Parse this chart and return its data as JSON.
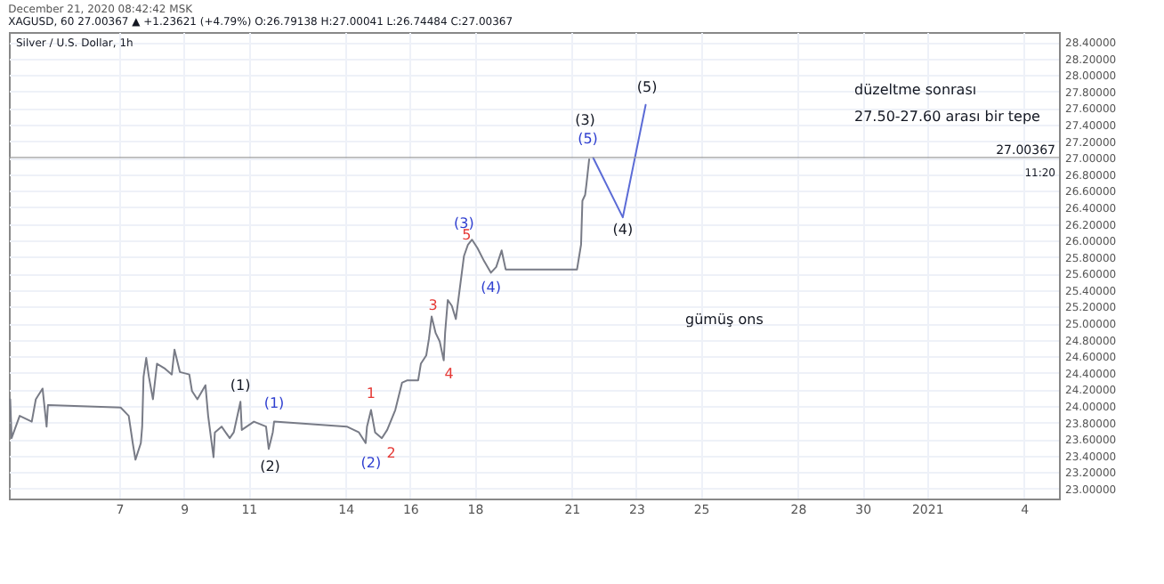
{
  "chart_data": {
    "type": "line",
    "title": "Silver / U.S. Dollar, 1h",
    "xlim": [
      "2020-12-03T14:00",
      "2021-01-05T02:00"
    ],
    "xticks": [
      {
        "value": "2020-12-07",
        "label": "7"
      },
      {
        "value": "2020-12-09",
        "label": "9"
      },
      {
        "value": "2020-12-11",
        "label": "11"
      },
      {
        "value": "2020-12-14",
        "label": "14"
      },
      {
        "value": "2020-12-16",
        "label": "16"
      },
      {
        "value": "2020-12-18",
        "label": "18"
      },
      {
        "value": "2020-12-21",
        "label": "21"
      },
      {
        "value": "2020-12-23",
        "label": "23"
      },
      {
        "value": "2020-12-25",
        "label": "25"
      },
      {
        "value": "2020-12-28",
        "label": "28"
      },
      {
        "value": "2020-12-30",
        "label": "30"
      },
      {
        "value": "2021-01-01",
        "label": "2021"
      },
      {
        "value": "2021-01-04",
        "label": "4"
      }
    ],
    "ylim": [
      22.88,
      28.52
    ],
    "yticks": [
      {
        "value": 23.0,
        "label": "23.00000"
      },
      {
        "value": 23.2,
        "label": "23.20000"
      },
      {
        "value": 23.4,
        "label": "23.40000"
      },
      {
        "value": 23.6,
        "label": "23.60000"
      },
      {
        "value": 23.8,
        "label": "23.80000"
      },
      {
        "value": 24.0,
        "label": "24.00000"
      },
      {
        "value": 24.2,
        "label": "24.20000"
      },
      {
        "value": 24.4,
        "label": "24.40000"
      },
      {
        "value": 24.6,
        "label": "24.60000"
      },
      {
        "value": 24.8,
        "label": "24.80000"
      },
      {
        "value": 25.0,
        "label": "25.00000"
      },
      {
        "value": 25.2,
        "label": "25.20000"
      },
      {
        "value": 25.4,
        "label": "25.40000"
      },
      {
        "value": 25.6,
        "label": "25.60000"
      },
      {
        "value": 25.8,
        "label": "25.80000"
      },
      {
        "value": 26.0,
        "label": "26.00000"
      },
      {
        "value": 26.2,
        "label": "26.20000"
      },
      {
        "value": 26.4,
        "label": "26.40000"
      },
      {
        "value": 26.6,
        "label": "26.60000"
      },
      {
        "value": 26.8,
        "label": "26.80000"
      },
      {
        "value": 27.0,
        "label": "27.00000"
      },
      {
        "value": 27.2,
        "label": "27.20000"
      },
      {
        "value": 27.4,
        "label": "27.40000"
      },
      {
        "value": 27.6,
        "label": "27.60000"
      },
      {
        "value": 27.8,
        "label": "27.80000"
      },
      {
        "value": 28.0,
        "label": "28.00000"
      },
      {
        "value": 28.2,
        "label": "28.20000"
      },
      {
        "value": 28.4,
        "label": "28.40000"
      }
    ],
    "grid": true,
    "series": [
      {
        "color": "#787b86",
        "x": [
          "2020-12-03T15:00",
          "2020-12-03T16:00",
          "2020-12-03T22:00",
          "2020-12-04T07:00",
          "2020-12-04T10:00",
          "2020-12-04T15:00",
          "2020-12-04T18:00",
          "2020-12-04T19:00",
          "2020-12-07T01:00",
          "2020-12-07T07:00",
          "2020-12-07T10:00",
          "2020-12-07T12:00",
          "2020-12-07T16:00",
          "2020-12-07T17:00",
          "2020-12-07T18:00",
          "2020-12-07T20:00",
          "2020-12-07T22:00",
          "2020-12-08T01:00",
          "2020-12-08T04:00",
          "2020-12-08T10:00",
          "2020-12-08T15:00",
          "2020-12-08T17:00",
          "2020-12-08T21:00",
          "2020-12-09T04:00",
          "2020-12-09T06:00",
          "2020-12-09T10:00",
          "2020-12-09T16:00",
          "2020-12-09T18:00",
          "2020-12-09T22:00",
          "2020-12-09T23:00",
          "2020-12-10T04:00",
          "2020-12-10T10:00",
          "2020-12-10T13:00",
          "2020-12-10T18:00",
          "2020-12-10T19:00",
          "2020-12-11T04:00",
          "2020-12-11T13:00",
          "2020-12-11T15:00",
          "2020-12-11T18:00",
          "2020-12-11T19:00",
          "2020-12-14T01:00",
          "2020-12-14T10:00",
          "2020-12-14T15:00",
          "2020-12-14T16:00",
          "2020-12-14T19:00",
          "2020-12-14T22:00",
          "2020-12-15T03:00",
          "2020-12-15T07:00",
          "2020-12-15T13:00",
          "2020-12-15T18:00",
          "2020-12-15T22:00",
          "2020-12-16T06:00",
          "2020-12-16T08:00",
          "2020-12-16T12:00",
          "2020-12-16T14:00",
          "2020-12-16T16:00",
          "2020-12-16T19:00",
          "2020-12-16T22:00",
          "2020-12-17T01:00",
          "2020-12-17T02:00",
          "2020-12-17T04:00",
          "2020-12-17T07:00",
          "2020-12-17T10:00",
          "2020-12-17T16:00",
          "2020-12-17T19:00",
          "2020-12-17T22:00",
          "2020-12-18T02:00",
          "2020-12-18T07:00",
          "2020-12-18T12:00",
          "2020-12-18T16:00",
          "2020-12-18T20:00",
          "2020-12-18T23:00",
          "2020-12-21T04:00",
          "2020-12-21T07:00",
          "2020-12-21T08:00",
          "2020-12-21T10:00",
          "2020-12-21T11:00",
          "2020-12-21T13:00"
        ],
        "values": [
          24.08,
          23.61,
          23.88,
          23.81,
          24.08,
          24.21,
          23.75,
          24.01,
          23.98,
          23.88,
          23.55,
          23.35,
          23.55,
          23.75,
          24.35,
          24.58,
          24.35,
          24.08,
          24.51,
          24.45,
          24.38,
          24.68,
          24.41,
          24.38,
          24.18,
          24.08,
          24.25,
          23.88,
          23.38,
          23.68,
          23.75,
          23.61,
          23.68,
          24.05,
          23.71,
          23.81,
          23.75,
          23.48,
          23.68,
          23.81,
          23.75,
          23.68,
          23.55,
          23.75,
          23.95,
          23.68,
          23.61,
          23.71,
          23.95,
          24.28,
          24.31,
          24.31,
          24.51,
          24.61,
          24.81,
          25.08,
          24.88,
          24.78,
          24.55,
          24.88,
          25.28,
          25.21,
          25.05,
          25.81,
          25.95,
          26.01,
          25.91,
          25.75,
          25.61,
          25.68,
          25.88,
          25.65,
          25.65,
          25.95,
          26.48,
          26.55,
          26.68,
          26.98
        ]
      },
      {
        "color": "#5b6bd6",
        "x": [
          "2020-12-21T16:00",
          "2020-12-22T14:00",
          "2020-12-23T07:00"
        ],
        "values": [
          27.0,
          26.28,
          27.64
        ]
      }
    ],
    "ref_lines": [
      {
        "axis": "y",
        "value": 27.00367,
        "label": "27.00367",
        "color": "#9e9e9e"
      }
    ],
    "annotations": [
      "December 21, 2020 08:42:42 MSK",
      "XAGUSD, 60 27.00367 ▲ +1.23621 (+4.79%) O:26.79138 H:27.00041 L:26.74484 C:27.00367",
      "düzeltme sonrası",
      "27.50-27.60 arası bir tepe",
      "gümüş ons",
      "11:20",
      "(1)",
      "(2)",
      "(3)",
      "(4)",
      "(5)",
      "(1)",
      "(2)",
      "(3)",
      "(4)",
      "(5)",
      "1",
      "2",
      "3",
      "4",
      "5"
    ]
  }
}
